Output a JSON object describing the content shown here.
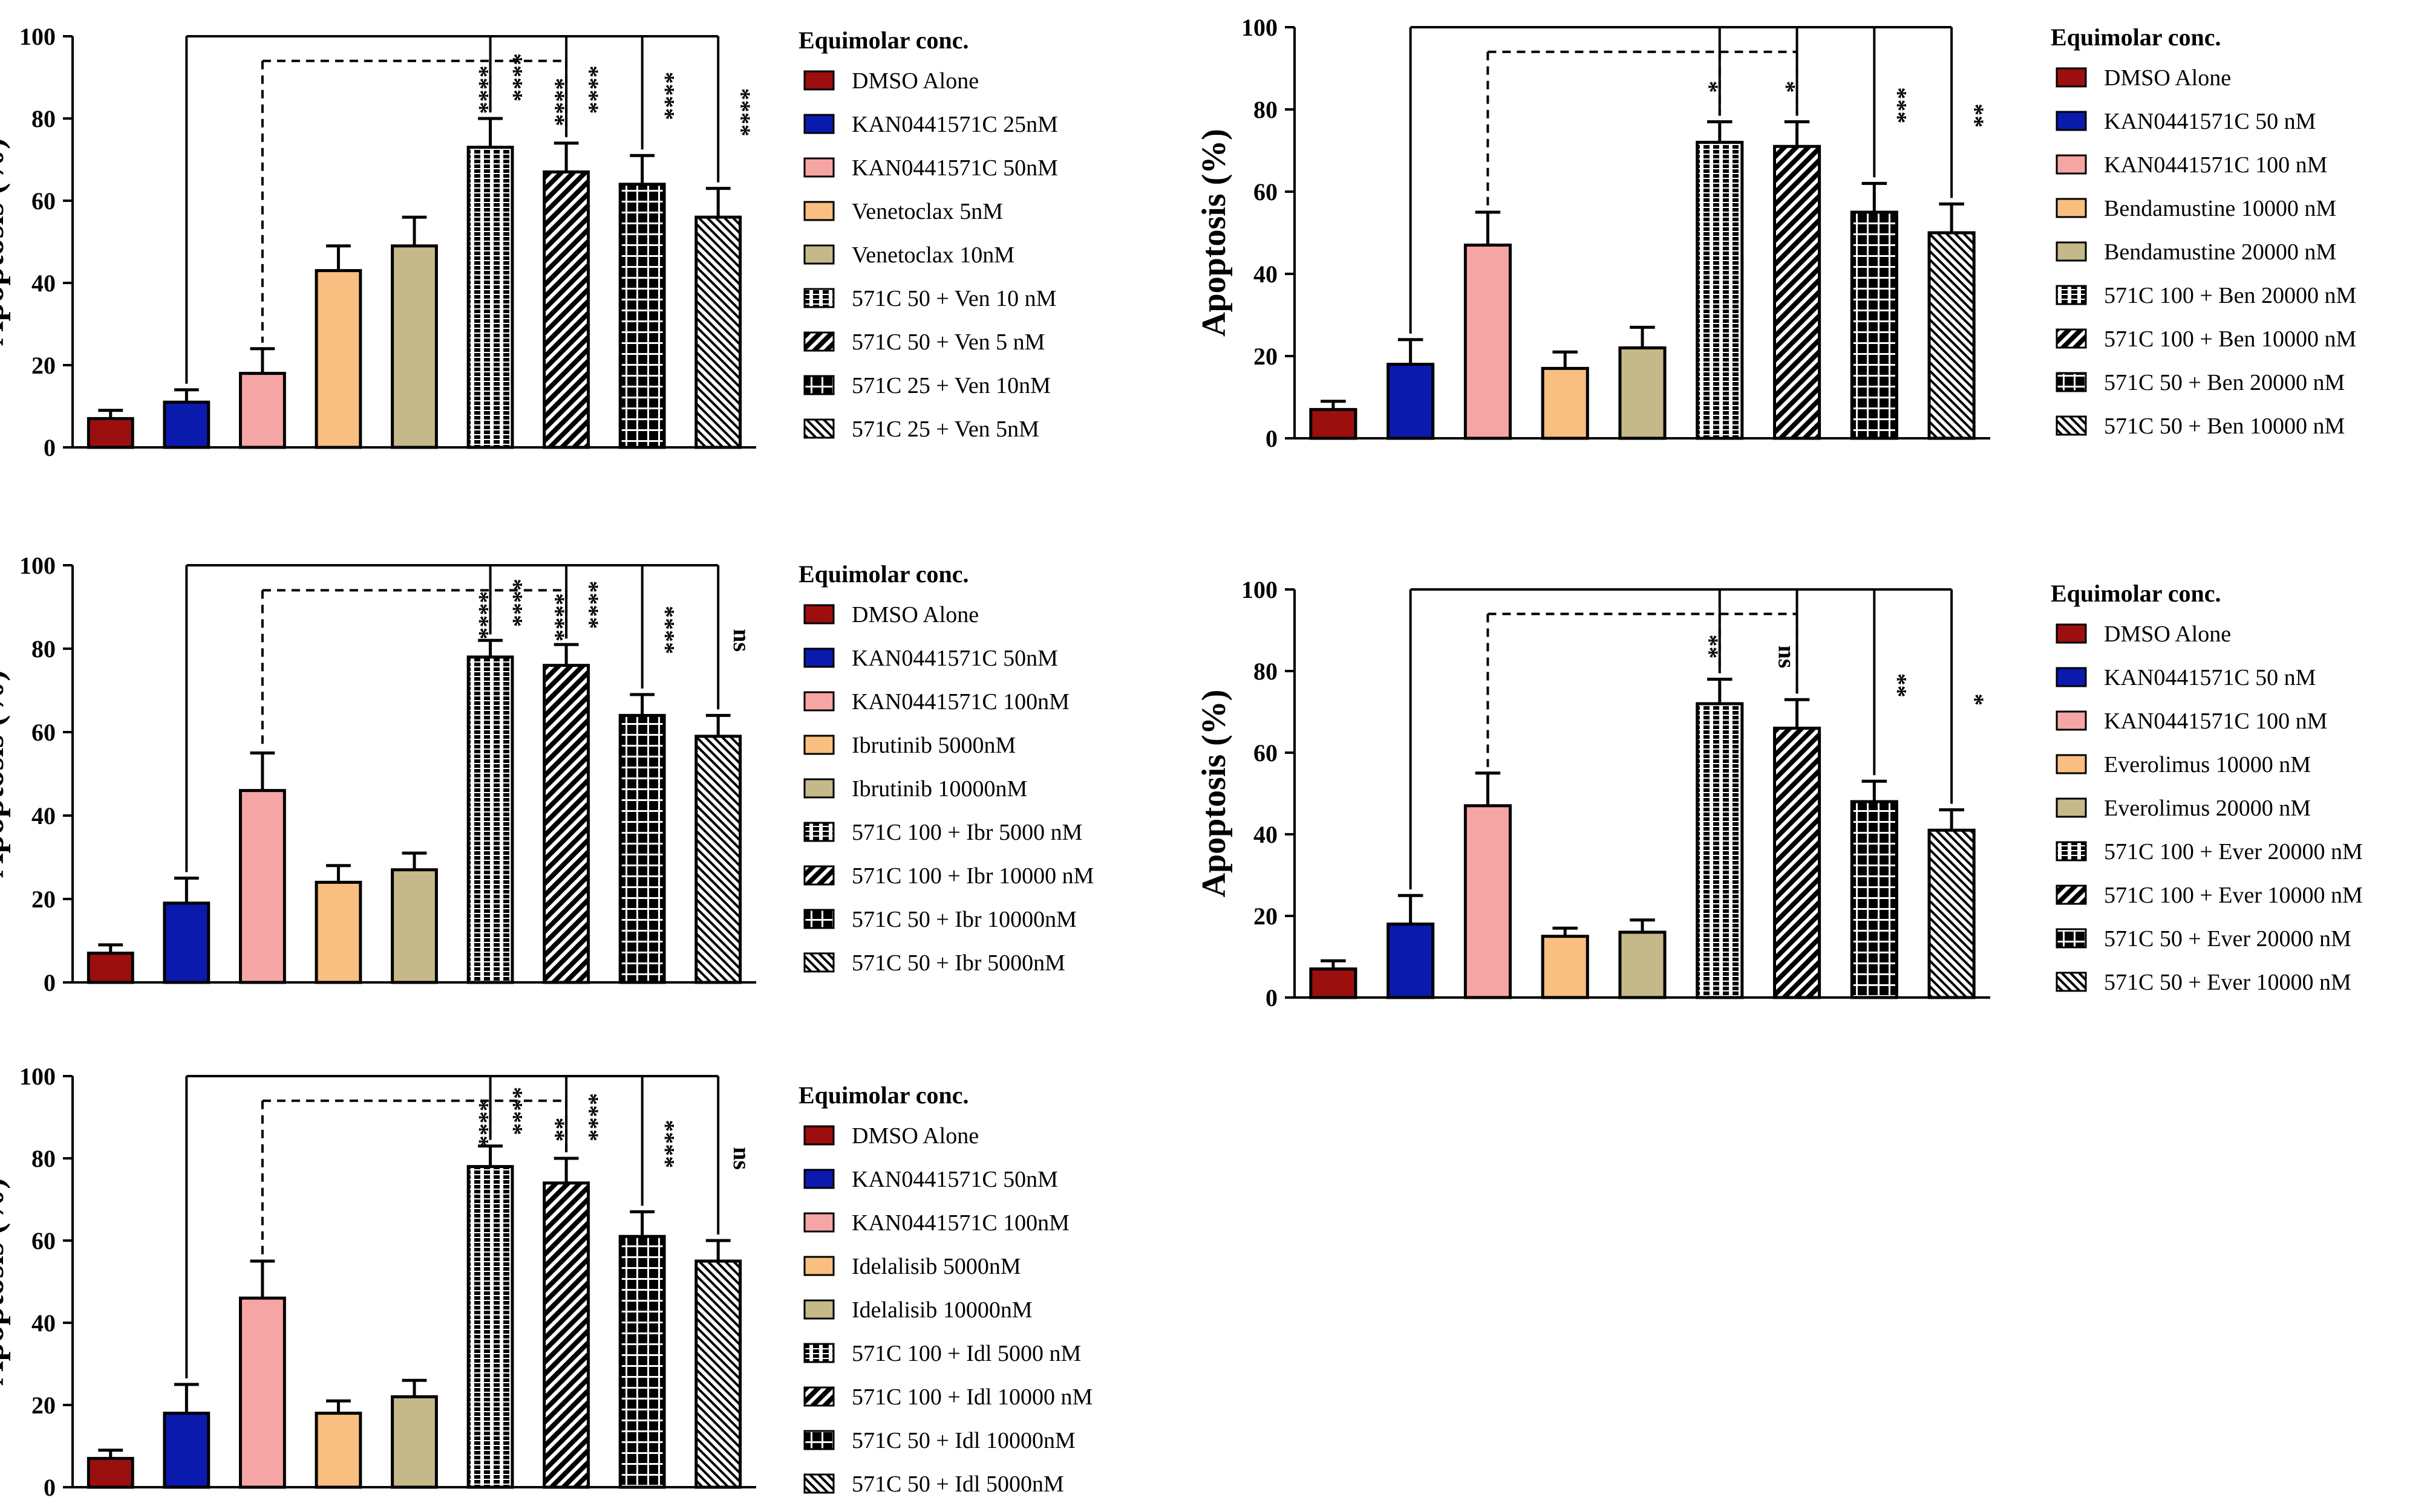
{
  "colors": {
    "dmso": "#9b0f0f",
    "kan_low": "#0a1aad",
    "kan_high": "#f6a5a5",
    "drug_low": "#f8bf80",
    "drug_high": "#c5b98a",
    "axis": "#000000"
  },
  "chart_data": [
    {
      "type": "bar",
      "id": "venetoclax",
      "ylabel": "Apoptosis (%)",
      "ylim": [
        0,
        100
      ],
      "yticks": [
        "0",
        "20",
        "40",
        "60",
        "80",
        "100"
      ],
      "legend_title": "Equimolar conc.",
      "categories": [
        "DMSO Alone",
        "KAN0441571C 25nM",
        "KAN0441571C 50nM",
        "Venetoclax 5nM",
        "Venetoclax 10nM",
        "571C 50 + Ven 10 nM",
        "571C 50 + Ven 5 nM",
        "571C 25 + Ven 10nM",
        "571C 25 + Ven 5nM"
      ],
      "values": [
        7,
        11,
        18,
        43,
        49,
        73,
        67,
        64,
        56
      ],
      "errors": [
        2,
        3,
        6,
        6,
        7,
        7,
        7,
        7,
        7
      ],
      "sig_solid": [
        "****",
        "****",
        "****",
        "****"
      ],
      "sig_dashed": [
        "****",
        "****"
      ]
    },
    {
      "type": "bar",
      "id": "bendamustine",
      "ylabel": "Apoptosis (%)",
      "ylim": [
        0,
        100
      ],
      "yticks": [
        "0",
        "20",
        "40",
        "60",
        "80",
        "100"
      ],
      "legend_title": "Equimolar conc.",
      "categories": [
        "DMSO Alone",
        "KAN0441571C 50 nM",
        "KAN0441571C 100 nM",
        "Bendamustine 10000 nM",
        "Bendamustine 20000 nM",
        "571C 100 + Ben 20000 nM",
        "571C 100 + Ben 10000 nM",
        "571C 50 + Ben 20000 nM",
        "571C 50 + Ben 10000 nM"
      ],
      "values": [
        7,
        18,
        47,
        17,
        22,
        72,
        71,
        55,
        50
      ],
      "errors": [
        2,
        6,
        8,
        4,
        5,
        5,
        6,
        7,
        7
      ],
      "sig_solid": [
        "",
        "",
        "***",
        "**"
      ],
      "sig_dashed": [
        "*",
        "*"
      ]
    },
    {
      "type": "bar",
      "id": "ibrutinib",
      "ylabel": "Apoptosis (%)",
      "ylim": [
        0,
        100
      ],
      "yticks": [
        "0",
        "20",
        "40",
        "60",
        "80",
        "100"
      ],
      "legend_title": "Equimolar conc.",
      "categories": [
        "DMSO Alone",
        "KAN0441571C 50nM",
        "KAN0441571C 100nM",
        "Ibrutinib 5000nM",
        "Ibrutinib 10000nM",
        "571C 100 + Ibr 5000 nM",
        "571C 100 + Ibr 10000 nM",
        "571C 50 + Ibr 10000nM",
        "571C 50 + Ibr 5000nM"
      ],
      "values": [
        7,
        19,
        46,
        24,
        27,
        78,
        76,
        64,
        59
      ],
      "errors": [
        2,
        6,
        9,
        4,
        4,
        4,
        5,
        5,
        5
      ],
      "sig_solid": [
        "****",
        "****",
        "****",
        "ns"
      ],
      "sig_dashed": [
        "****",
        "****"
      ]
    },
    {
      "type": "bar",
      "id": "everolimus",
      "ylabel": "Apoptosis (%)",
      "ylim": [
        0,
        100
      ],
      "yticks": [
        "0",
        "20",
        "40",
        "60",
        "80",
        "100"
      ],
      "legend_title": "Equimolar conc.",
      "categories": [
        " DMSO Alone",
        "KAN0441571C 50 nM",
        "KAN0441571C 100 nM",
        "Everolimus 10000 nM",
        "Everolimus 20000 nM",
        "571C 100 + Ever 20000 nM",
        "571C 100 + Ever 10000 nM",
        "571C 50 + Ever 20000 nM",
        "571C 50 + Ever 10000 nM"
      ],
      "values": [
        7,
        18,
        47,
        15,
        16,
        72,
        66,
        48,
        41
      ],
      "errors": [
        2,
        7,
        8,
        2,
        3,
        6,
        7,
        5,
        5
      ],
      "sig_solid": [
        "",
        "",
        "**",
        "*"
      ],
      "sig_dashed": [
        "**",
        "ns"
      ]
    },
    {
      "type": "bar",
      "id": "idelalisib",
      "ylabel": "Apoptosis (%)",
      "ylim": [
        0,
        100
      ],
      "yticks": [
        "0",
        "20",
        "40",
        "60",
        "80",
        "100"
      ],
      "legend_title": "Equimolar conc.",
      "categories": [
        "DMSO Alone",
        "KAN0441571C 50nM",
        "KAN0441571C 100nM",
        "Idelalisib 5000nM",
        "Idelalisib 10000nM",
        "571C 100 + Idl 5000 nM",
        "571C 100 + Idl 10000 nM",
        "571C 50 + Idl 10000nM",
        "571C 50 + Idl 5000nM"
      ],
      "values": [
        7,
        18,
        46,
        18,
        22,
        78,
        74,
        61,
        55
      ],
      "errors": [
        2,
        7,
        9,
        3,
        4,
        5,
        6,
        6,
        5
      ],
      "sig_solid": [
        "****",
        "****",
        "****",
        "ns"
      ],
      "sig_dashed": [
        "****",
        "**"
      ]
    }
  ]
}
